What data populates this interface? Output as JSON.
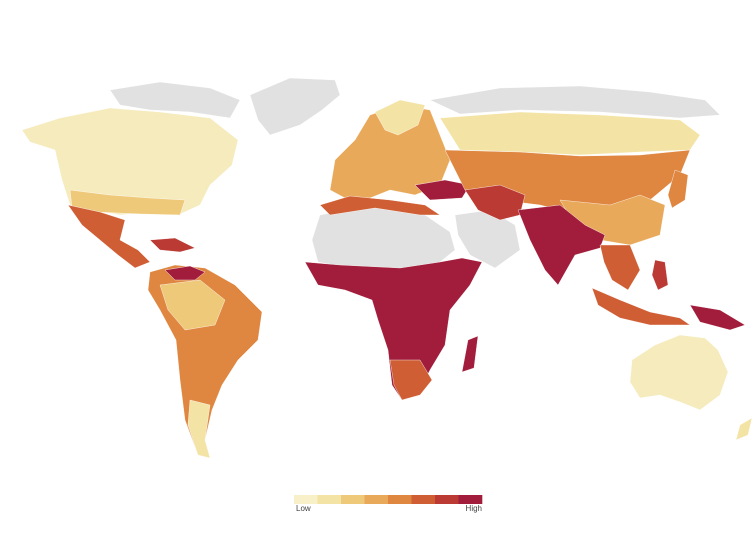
{
  "legend": {
    "low_label": "Low",
    "high_label": "High",
    "colors": [
      "#f7f0c8",
      "#f3e3a4",
      "#efc97a",
      "#e9a95a",
      "#df8640",
      "#cf5e34",
      "#bb3a34",
      "#a11d3b"
    ]
  }
}
